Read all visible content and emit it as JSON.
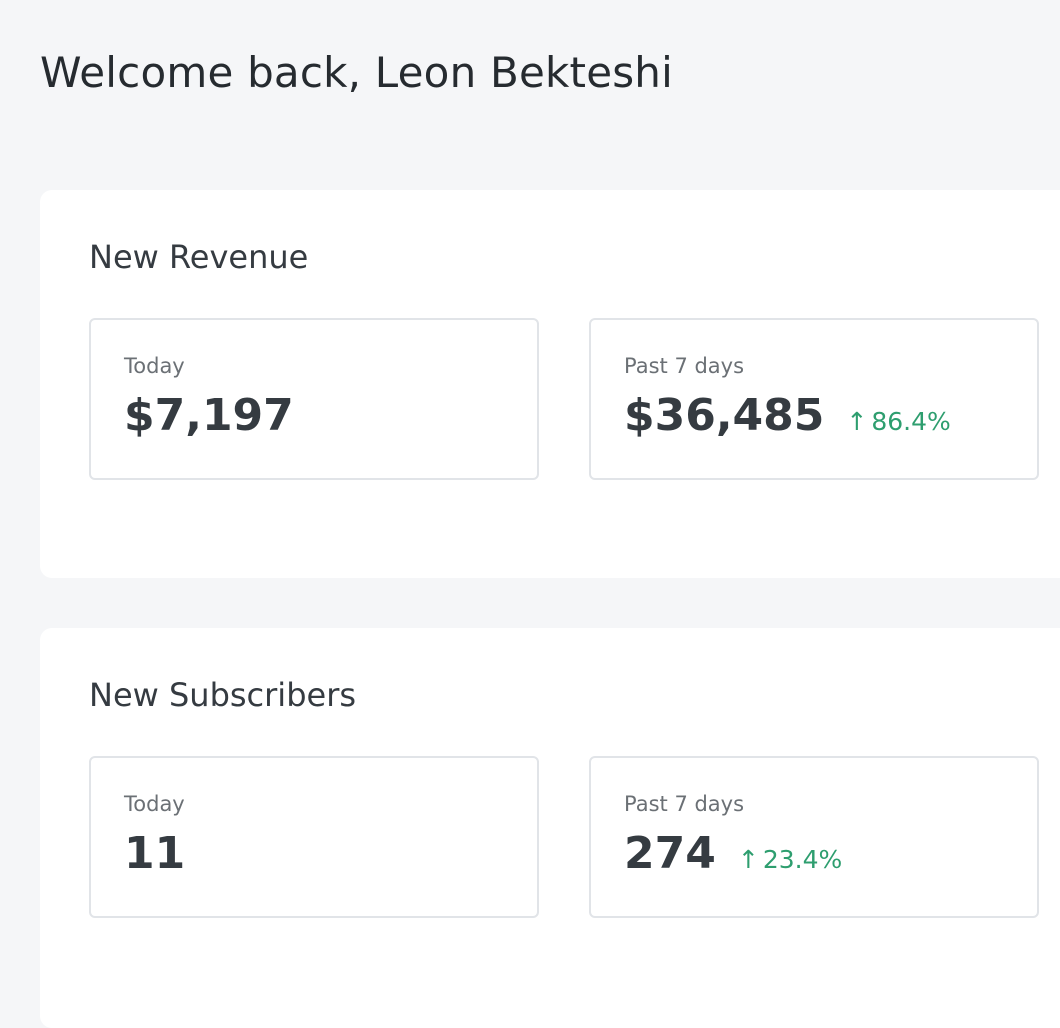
{
  "greeting": "Welcome back, Leon Bekteshi",
  "sections": [
    {
      "title": "New Revenue",
      "today_label": "Today",
      "today_value": "$7,197",
      "week_label": "Past 7 days",
      "week_value": "$36,485",
      "week_change": "86.4%"
    },
    {
      "title": "New Subscribers",
      "today_label": "Today",
      "today_value": "11",
      "week_label": "Past 7 days",
      "week_value": "274",
      "week_change": "23.4%"
    }
  ],
  "colors": {
    "positive": "#2e9e6f"
  }
}
